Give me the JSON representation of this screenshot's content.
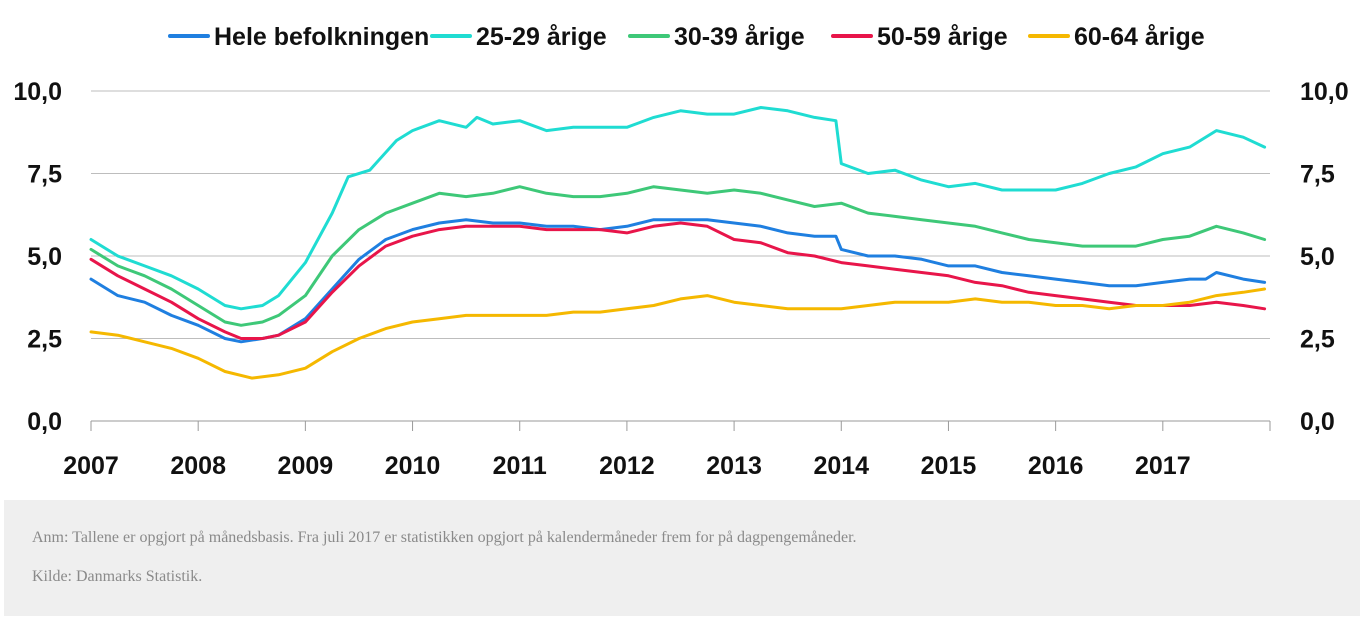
{
  "chart_data": {
    "type": "line",
    "y_ticks": [
      "0,0",
      "2,5",
      "5,0",
      "7,5",
      "10,0"
    ],
    "x_ticks": [
      "2007",
      "2008",
      "2009",
      "2010",
      "2011",
      "2012",
      "2013",
      "2014",
      "2015",
      "2016",
      "2017"
    ],
    "ylim": [
      0,
      10
    ],
    "xlim": [
      2007,
      2018
    ],
    "grid": true,
    "legend_position": "top",
    "series": [
      {
        "name": "Hele befolkningen",
        "color": "#1f7fe0",
        "points": [
          [
            2007.0,
            4.3
          ],
          [
            2007.25,
            3.8
          ],
          [
            2007.5,
            3.6
          ],
          [
            2007.75,
            3.2
          ],
          [
            2008.0,
            2.9
          ],
          [
            2008.25,
            2.5
          ],
          [
            2008.4,
            2.4
          ],
          [
            2008.6,
            2.5
          ],
          [
            2008.75,
            2.6
          ],
          [
            2009.0,
            3.1
          ],
          [
            2009.25,
            4.0
          ],
          [
            2009.5,
            4.9
          ],
          [
            2009.75,
            5.5
          ],
          [
            2010.0,
            5.8
          ],
          [
            2010.25,
            6.0
          ],
          [
            2010.5,
            6.1
          ],
          [
            2010.75,
            6.0
          ],
          [
            2011.0,
            6.0
          ],
          [
            2011.25,
            5.9
          ],
          [
            2011.5,
            5.9
          ],
          [
            2011.75,
            5.8
          ],
          [
            2012.0,
            5.9
          ],
          [
            2012.25,
            6.1
          ],
          [
            2012.5,
            6.1
          ],
          [
            2012.75,
            6.1
          ],
          [
            2013.0,
            6.0
          ],
          [
            2013.25,
            5.9
          ],
          [
            2013.5,
            5.7
          ],
          [
            2013.75,
            5.6
          ],
          [
            2013.95,
            5.6
          ],
          [
            2014.0,
            5.2
          ],
          [
            2014.25,
            5.0
          ],
          [
            2014.5,
            5.0
          ],
          [
            2014.75,
            4.9
          ],
          [
            2015.0,
            4.7
          ],
          [
            2015.25,
            4.7
          ],
          [
            2015.5,
            4.5
          ],
          [
            2015.75,
            4.4
          ],
          [
            2016.0,
            4.3
          ],
          [
            2016.25,
            4.2
          ],
          [
            2016.5,
            4.1
          ],
          [
            2016.75,
            4.1
          ],
          [
            2017.0,
            4.2
          ],
          [
            2017.25,
            4.3
          ],
          [
            2017.4,
            4.3
          ],
          [
            2017.5,
            4.5
          ],
          [
            2017.75,
            4.3
          ],
          [
            2017.95,
            4.2
          ]
        ]
      },
      {
        "name": "25-29 årige",
        "color": "#1fdcd2",
        "points": [
          [
            2007.0,
            5.5
          ],
          [
            2007.25,
            5.0
          ],
          [
            2007.5,
            4.7
          ],
          [
            2007.75,
            4.4
          ],
          [
            2008.0,
            4.0
          ],
          [
            2008.25,
            3.5
          ],
          [
            2008.4,
            3.4
          ],
          [
            2008.6,
            3.5
          ],
          [
            2008.75,
            3.8
          ],
          [
            2009.0,
            4.8
          ],
          [
            2009.25,
            6.3
          ],
          [
            2009.4,
            7.4
          ],
          [
            2009.6,
            7.6
          ],
          [
            2009.85,
            8.5
          ],
          [
            2010.0,
            8.8
          ],
          [
            2010.25,
            9.1
          ],
          [
            2010.5,
            8.9
          ],
          [
            2010.6,
            9.2
          ],
          [
            2010.75,
            9.0
          ],
          [
            2011.0,
            9.1
          ],
          [
            2011.25,
            8.8
          ],
          [
            2011.5,
            8.9
          ],
          [
            2011.75,
            8.9
          ],
          [
            2012.0,
            8.9
          ],
          [
            2012.25,
            9.2
          ],
          [
            2012.5,
            9.4
          ],
          [
            2012.75,
            9.3
          ],
          [
            2013.0,
            9.3
          ],
          [
            2013.25,
            9.5
          ],
          [
            2013.5,
            9.4
          ],
          [
            2013.75,
            9.2
          ],
          [
            2013.95,
            9.1
          ],
          [
            2014.0,
            7.8
          ],
          [
            2014.25,
            7.5
          ],
          [
            2014.5,
            7.6
          ],
          [
            2014.75,
            7.3
          ],
          [
            2015.0,
            7.1
          ],
          [
            2015.25,
            7.2
          ],
          [
            2015.5,
            7.0
          ],
          [
            2015.75,
            7.0
          ],
          [
            2016.0,
            7.0
          ],
          [
            2016.25,
            7.2
          ],
          [
            2016.5,
            7.5
          ],
          [
            2016.75,
            7.7
          ],
          [
            2017.0,
            8.1
          ],
          [
            2017.25,
            8.3
          ],
          [
            2017.5,
            8.8
          ],
          [
            2017.75,
            8.6
          ],
          [
            2017.95,
            8.3
          ]
        ]
      },
      {
        "name": "30-39 årige",
        "color": "#3ec878",
        "points": [
          [
            2007.0,
            5.2
          ],
          [
            2007.25,
            4.7
          ],
          [
            2007.5,
            4.4
          ],
          [
            2007.75,
            4.0
          ],
          [
            2008.0,
            3.5
          ],
          [
            2008.25,
            3.0
          ],
          [
            2008.4,
            2.9
          ],
          [
            2008.6,
            3.0
          ],
          [
            2008.75,
            3.2
          ],
          [
            2009.0,
            3.8
          ],
          [
            2009.25,
            5.0
          ],
          [
            2009.5,
            5.8
          ],
          [
            2009.75,
            6.3
          ],
          [
            2010.0,
            6.6
          ],
          [
            2010.25,
            6.9
          ],
          [
            2010.5,
            6.8
          ],
          [
            2010.75,
            6.9
          ],
          [
            2011.0,
            7.1
          ],
          [
            2011.25,
            6.9
          ],
          [
            2011.5,
            6.8
          ],
          [
            2011.75,
            6.8
          ],
          [
            2012.0,
            6.9
          ],
          [
            2012.25,
            7.1
          ],
          [
            2012.5,
            7.0
          ],
          [
            2012.75,
            6.9
          ],
          [
            2013.0,
            7.0
          ],
          [
            2013.25,
            6.9
          ],
          [
            2013.5,
            6.7
          ],
          [
            2013.75,
            6.5
          ],
          [
            2014.0,
            6.6
          ],
          [
            2014.25,
            6.3
          ],
          [
            2014.5,
            6.2
          ],
          [
            2014.75,
            6.1
          ],
          [
            2015.0,
            6.0
          ],
          [
            2015.25,
            5.9
          ],
          [
            2015.5,
            5.7
          ],
          [
            2015.75,
            5.5
          ],
          [
            2016.0,
            5.4
          ],
          [
            2016.25,
            5.3
          ],
          [
            2016.5,
            5.3
          ],
          [
            2016.75,
            5.3
          ],
          [
            2017.0,
            5.5
          ],
          [
            2017.25,
            5.6
          ],
          [
            2017.5,
            5.9
          ],
          [
            2017.75,
            5.7
          ],
          [
            2017.95,
            5.5
          ]
        ]
      },
      {
        "name": "50-59 årige",
        "color": "#e8154a",
        "points": [
          [
            2007.0,
            4.9
          ],
          [
            2007.25,
            4.4
          ],
          [
            2007.5,
            4.0
          ],
          [
            2007.75,
            3.6
          ],
          [
            2008.0,
            3.1
          ],
          [
            2008.25,
            2.7
          ],
          [
            2008.4,
            2.5
          ],
          [
            2008.6,
            2.5
          ],
          [
            2008.75,
            2.6
          ],
          [
            2009.0,
            3.0
          ],
          [
            2009.25,
            3.9
          ],
          [
            2009.5,
            4.7
          ],
          [
            2009.75,
            5.3
          ],
          [
            2010.0,
            5.6
          ],
          [
            2010.25,
            5.8
          ],
          [
            2010.5,
            5.9
          ],
          [
            2010.75,
            5.9
          ],
          [
            2011.0,
            5.9
          ],
          [
            2011.25,
            5.8
          ],
          [
            2011.5,
            5.8
          ],
          [
            2011.75,
            5.8
          ],
          [
            2012.0,
            5.7
          ],
          [
            2012.25,
            5.9
          ],
          [
            2012.5,
            6.0
          ],
          [
            2012.75,
            5.9
          ],
          [
            2013.0,
            5.5
          ],
          [
            2013.25,
            5.4
          ],
          [
            2013.5,
            5.1
          ],
          [
            2013.75,
            5.0
          ],
          [
            2014.0,
            4.8
          ],
          [
            2014.25,
            4.7
          ],
          [
            2014.5,
            4.6
          ],
          [
            2014.75,
            4.5
          ],
          [
            2015.0,
            4.4
          ],
          [
            2015.25,
            4.2
          ],
          [
            2015.5,
            4.1
          ],
          [
            2015.75,
            3.9
          ],
          [
            2016.0,
            3.8
          ],
          [
            2016.25,
            3.7
          ],
          [
            2016.5,
            3.6
          ],
          [
            2016.75,
            3.5
          ],
          [
            2017.0,
            3.5
          ],
          [
            2017.25,
            3.5
          ],
          [
            2017.5,
            3.6
          ],
          [
            2017.75,
            3.5
          ],
          [
            2017.95,
            3.4
          ]
        ]
      },
      {
        "name": "60-64 årige",
        "color": "#f5b800",
        "points": [
          [
            2007.0,
            2.7
          ],
          [
            2007.25,
            2.6
          ],
          [
            2007.5,
            2.4
          ],
          [
            2007.75,
            2.2
          ],
          [
            2008.0,
            1.9
          ],
          [
            2008.25,
            1.5
          ],
          [
            2008.5,
            1.3
          ],
          [
            2008.75,
            1.4
          ],
          [
            2009.0,
            1.6
          ],
          [
            2009.25,
            2.1
          ],
          [
            2009.5,
            2.5
          ],
          [
            2009.75,
            2.8
          ],
          [
            2010.0,
            3.0
          ],
          [
            2010.25,
            3.1
          ],
          [
            2010.5,
            3.2
          ],
          [
            2010.75,
            3.2
          ],
          [
            2011.0,
            3.2
          ],
          [
            2011.25,
            3.2
          ],
          [
            2011.5,
            3.3
          ],
          [
            2011.75,
            3.3
          ],
          [
            2012.0,
            3.4
          ],
          [
            2012.25,
            3.5
          ],
          [
            2012.5,
            3.7
          ],
          [
            2012.75,
            3.8
          ],
          [
            2013.0,
            3.6
          ],
          [
            2013.25,
            3.5
          ],
          [
            2013.5,
            3.4
          ],
          [
            2013.75,
            3.4
          ],
          [
            2014.0,
            3.4
          ],
          [
            2014.25,
            3.5
          ],
          [
            2014.5,
            3.6
          ],
          [
            2014.75,
            3.6
          ],
          [
            2015.0,
            3.6
          ],
          [
            2015.25,
            3.7
          ],
          [
            2015.5,
            3.6
          ],
          [
            2015.75,
            3.6
          ],
          [
            2016.0,
            3.5
          ],
          [
            2016.25,
            3.5
          ],
          [
            2016.5,
            3.4
          ],
          [
            2016.75,
            3.5
          ],
          [
            2017.0,
            3.5
          ],
          [
            2017.25,
            3.6
          ],
          [
            2017.5,
            3.8
          ],
          [
            2017.75,
            3.9
          ],
          [
            2017.95,
            4.0
          ]
        ]
      }
    ]
  },
  "notes": {
    "anm": "Anm: Tallene er opgjort på månedsbasis. Fra juli 2017 er statistikken opgjort på kalendermåneder frem for på dagpengemåneder.",
    "kilde": "Kilde: Danmarks Statistik."
  }
}
